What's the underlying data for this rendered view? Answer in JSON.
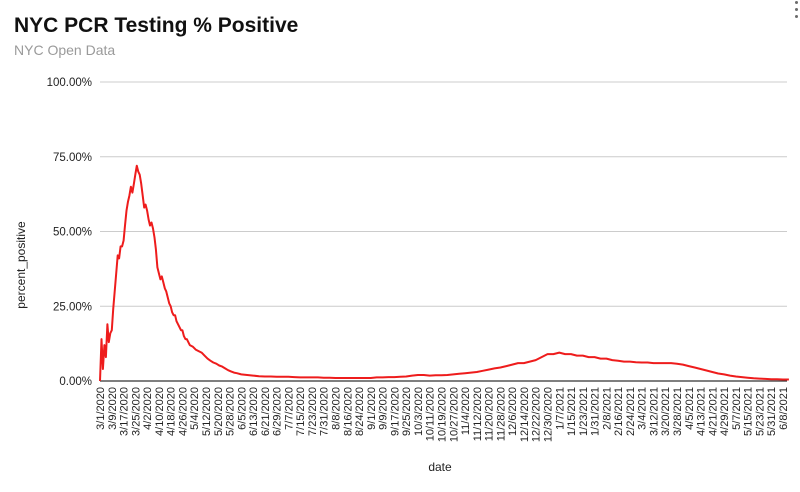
{
  "chart_data": {
    "type": "line",
    "title": "NYC PCR Testing % Positive",
    "subtitle": "NYC Open Data",
    "xlabel": "date",
    "ylabel": "percent_positive",
    "ylim": [
      0,
      1
    ],
    "yticks": [
      "0.00%",
      "25.00%",
      "50.00%",
      "75.00%",
      "100.00%"
    ],
    "grid": true,
    "line_color": "#ee1c1c",
    "xtick_labels": [
      "3/1/2020",
      "3/9/2020",
      "3/17/2020",
      "3/25/2020",
      "4/2/2020",
      "4/10/2020",
      "4/18/2020",
      "4/26/2020",
      "5/4/2020",
      "5/12/2020",
      "5/20/2020",
      "5/28/2020",
      "6/5/2020",
      "6/13/2020",
      "6/21/2020",
      "6/29/2020",
      "7/7/2020",
      "7/15/2020",
      "7/23/2020",
      "7/31/2020",
      "8/8/2020",
      "8/16/2020",
      "8/24/2020",
      "9/1/2020",
      "9/9/2020",
      "9/17/2020",
      "9/25/2020",
      "10/3/2020",
      "10/11/2020",
      "10/19/2020",
      "10/27/2020",
      "11/4/2020",
      "11/12/2020",
      "11/20/2020",
      "11/28/2020",
      "12/6/2020",
      "12/14/2020",
      "12/22/2020",
      "12/30/2020",
      "1/7/2021",
      "1/15/2021",
      "1/23/2021",
      "1/31/2021",
      "2/8/2021",
      "2/16/2021",
      "2/24/2021",
      "3/4/2021",
      "3/12/2021",
      "3/20/2021",
      "3/28/2021",
      "4/5/2021",
      "4/13/2021",
      "4/21/2021",
      "4/29/2021",
      "5/7/2021",
      "5/15/2021",
      "5/23/2021",
      "5/31/2021",
      "6/8/2021"
    ],
    "series": [
      {
        "values": [
          [
            "3/1/2020",
            0.0
          ],
          [
            "3/2/2020",
            0.14
          ],
          [
            "3/3/2020",
            0.04
          ],
          [
            "3/4/2020",
            0.12
          ],
          [
            "3/5/2020",
            0.08
          ],
          [
            "3/6/2020",
            0.19
          ],
          [
            "3/7/2020",
            0.13
          ],
          [
            "3/8/2020",
            0.16
          ],
          [
            "3/9/2020",
            0.17
          ],
          [
            "3/10/2020",
            0.24
          ],
          [
            "3/11/2020",
            0.3
          ],
          [
            "3/12/2020",
            0.36
          ],
          [
            "3/13/2020",
            0.42
          ],
          [
            "3/14/2020",
            0.41
          ],
          [
            "3/15/2020",
            0.45
          ],
          [
            "3/16/2020",
            0.45
          ],
          [
            "3/17/2020",
            0.47
          ],
          [
            "3/18/2020",
            0.52
          ],
          [
            "3/19/2020",
            0.57
          ],
          [
            "3/20/2020",
            0.6
          ],
          [
            "3/21/2020",
            0.62
          ],
          [
            "3/22/2020",
            0.65
          ],
          [
            "3/23/2020",
            0.63
          ],
          [
            "3/24/2020",
            0.66
          ],
          [
            "3/25/2020",
            0.69
          ],
          [
            "3/26/2020",
            0.72
          ],
          [
            "3/27/2020",
            0.7
          ],
          [
            "3/28/2020",
            0.69
          ],
          [
            "3/29/2020",
            0.66
          ],
          [
            "3/30/2020",
            0.62
          ],
          [
            "3/31/2020",
            0.58
          ],
          [
            "4/1/2020",
            0.59
          ],
          [
            "4/2/2020",
            0.57
          ],
          [
            "4/3/2020",
            0.54
          ],
          [
            "4/4/2020",
            0.52
          ],
          [
            "4/5/2020",
            0.53
          ],
          [
            "4/6/2020",
            0.51
          ],
          [
            "4/7/2020",
            0.48
          ],
          [
            "4/8/2020",
            0.44
          ],
          [
            "4/9/2020",
            0.38
          ],
          [
            "4/10/2020",
            0.36
          ],
          [
            "4/11/2020",
            0.34
          ],
          [
            "4/12/2020",
            0.35
          ],
          [
            "4/13/2020",
            0.33
          ],
          [
            "4/14/2020",
            0.31
          ],
          [
            "4/15/2020",
            0.3
          ],
          [
            "4/16/2020",
            0.28
          ],
          [
            "4/17/2020",
            0.26
          ],
          [
            "4/18/2020",
            0.25
          ],
          [
            "4/19/2020",
            0.23
          ],
          [
            "4/20/2020",
            0.22
          ],
          [
            "4/21/2020",
            0.22
          ],
          [
            "4/22/2020",
            0.2
          ],
          [
            "4/23/2020",
            0.19
          ],
          [
            "4/24/2020",
            0.18
          ],
          [
            "4/25/2020",
            0.17
          ],
          [
            "4/26/2020",
            0.17
          ],
          [
            "4/27/2020",
            0.15
          ],
          [
            "4/28/2020",
            0.14
          ],
          [
            "4/29/2020",
            0.14
          ],
          [
            "4/30/2020",
            0.13
          ],
          [
            "5/1/2020",
            0.12
          ],
          [
            "5/3/2020",
            0.115
          ],
          [
            "5/5/2020",
            0.105
          ],
          [
            "5/7/2020",
            0.1
          ],
          [
            "5/9/2020",
            0.095
          ],
          [
            "5/11/2020",
            0.085
          ],
          [
            "5/13/2020",
            0.075
          ],
          [
            "5/15/2020",
            0.068
          ],
          [
            "5/17/2020",
            0.062
          ],
          [
            "5/19/2020",
            0.058
          ],
          [
            "5/21/2020",
            0.052
          ],
          [
            "5/23/2020",
            0.048
          ],
          [
            "5/25/2020",
            0.042
          ],
          [
            "5/27/2020",
            0.036
          ],
          [
            "5/29/2020",
            0.032
          ],
          [
            "5/31/2020",
            0.028
          ],
          [
            "6/2/2020",
            0.026
          ],
          [
            "6/5/2020",
            0.022
          ],
          [
            "6/9/2020",
            0.02
          ],
          [
            "6/13/2020",
            0.018
          ],
          [
            "6/17/2020",
            0.016
          ],
          [
            "6/21/2020",
            0.015
          ],
          [
            "6/25/2020",
            0.015
          ],
          [
            "6/29/2020",
            0.014
          ],
          [
            "7/3/2020",
            0.014
          ],
          [
            "7/7/2020",
            0.014
          ],
          [
            "7/11/2020",
            0.013
          ],
          [
            "7/15/2020",
            0.012
          ],
          [
            "7/19/2020",
            0.012
          ],
          [
            "7/23/2020",
            0.012
          ],
          [
            "7/27/2020",
            0.012
          ],
          [
            "7/31/2020",
            0.011
          ],
          [
            "8/4/2020",
            0.011
          ],
          [
            "8/8/2020",
            0.01
          ],
          [
            "8/12/2020",
            0.01
          ],
          [
            "8/16/2020",
            0.01
          ],
          [
            "8/20/2020",
            0.01
          ],
          [
            "8/24/2020",
            0.01
          ],
          [
            "8/28/2020",
            0.01
          ],
          [
            "9/1/2020",
            0.01
          ],
          [
            "9/5/2020",
            0.012
          ],
          [
            "9/9/2020",
            0.012
          ],
          [
            "9/13/2020",
            0.013
          ],
          [
            "9/17/2020",
            0.013
          ],
          [
            "9/21/2020",
            0.014
          ],
          [
            "9/25/2020",
            0.015
          ],
          [
            "9/29/2020",
            0.018
          ],
          [
            "10/3/2020",
            0.02
          ],
          [
            "10/7/2020",
            0.02
          ],
          [
            "10/11/2020",
            0.018
          ],
          [
            "10/15/2020",
            0.019
          ],
          [
            "10/19/2020",
            0.019
          ],
          [
            "10/23/2020",
            0.02
          ],
          [
            "10/27/2020",
            0.022
          ],
          [
            "10/31/2020",
            0.024
          ],
          [
            "11/4/2020",
            0.026
          ],
          [
            "11/8/2020",
            0.028
          ],
          [
            "11/12/2020",
            0.03
          ],
          [
            "11/16/2020",
            0.034
          ],
          [
            "11/20/2020",
            0.038
          ],
          [
            "11/24/2020",
            0.042
          ],
          [
            "11/28/2020",
            0.045
          ],
          [
            "12/2/2020",
            0.05
          ],
          [
            "12/6/2020",
            0.055
          ],
          [
            "12/10/2020",
            0.06
          ],
          [
            "12/14/2020",
            0.06
          ],
          [
            "12/18/2020",
            0.065
          ],
          [
            "12/22/2020",
            0.07
          ],
          [
            "12/26/2020",
            0.08
          ],
          [
            "12/30/2020",
            0.09
          ],
          [
            "1/3/2021",
            0.09
          ],
          [
            "1/7/2021",
            0.095
          ],
          [
            "1/11/2021",
            0.09
          ],
          [
            "1/15/2021",
            0.09
          ],
          [
            "1/19/2021",
            0.085
          ],
          [
            "1/23/2021",
            0.085
          ],
          [
            "1/27/2021",
            0.08
          ],
          [
            "1/31/2021",
            0.08
          ],
          [
            "2/4/2021",
            0.075
          ],
          [
            "2/8/2021",
            0.075
          ],
          [
            "2/12/2021",
            0.07
          ],
          [
            "2/16/2021",
            0.068
          ],
          [
            "2/20/2021",
            0.065
          ],
          [
            "2/24/2021",
            0.065
          ],
          [
            "2/28/2021",
            0.063
          ],
          [
            "3/4/2021",
            0.062
          ],
          [
            "3/8/2021",
            0.062
          ],
          [
            "3/12/2021",
            0.06
          ],
          [
            "3/16/2021",
            0.06
          ],
          [
            "3/20/2021",
            0.06
          ],
          [
            "3/24/2021",
            0.06
          ],
          [
            "3/28/2021",
            0.058
          ],
          [
            "4/1/2021",
            0.055
          ],
          [
            "4/5/2021",
            0.05
          ],
          [
            "4/9/2021",
            0.045
          ],
          [
            "4/13/2021",
            0.04
          ],
          [
            "4/17/2021",
            0.035
          ],
          [
            "4/21/2021",
            0.03
          ],
          [
            "4/25/2021",
            0.025
          ],
          [
            "4/29/2021",
            0.022
          ],
          [
            "5/3/2021",
            0.018
          ],
          [
            "5/7/2021",
            0.015
          ],
          [
            "5/11/2021",
            0.013
          ],
          [
            "5/15/2021",
            0.011
          ],
          [
            "5/19/2021",
            0.009
          ],
          [
            "5/23/2021",
            0.008
          ],
          [
            "5/27/2021",
            0.007
          ],
          [
            "5/31/2021",
            0.006
          ],
          [
            "6/4/2021",
            0.006
          ],
          [
            "6/8/2021",
            0.005
          ],
          [
            "6/12/2021",
            0.005
          ]
        ]
      }
    ]
  }
}
